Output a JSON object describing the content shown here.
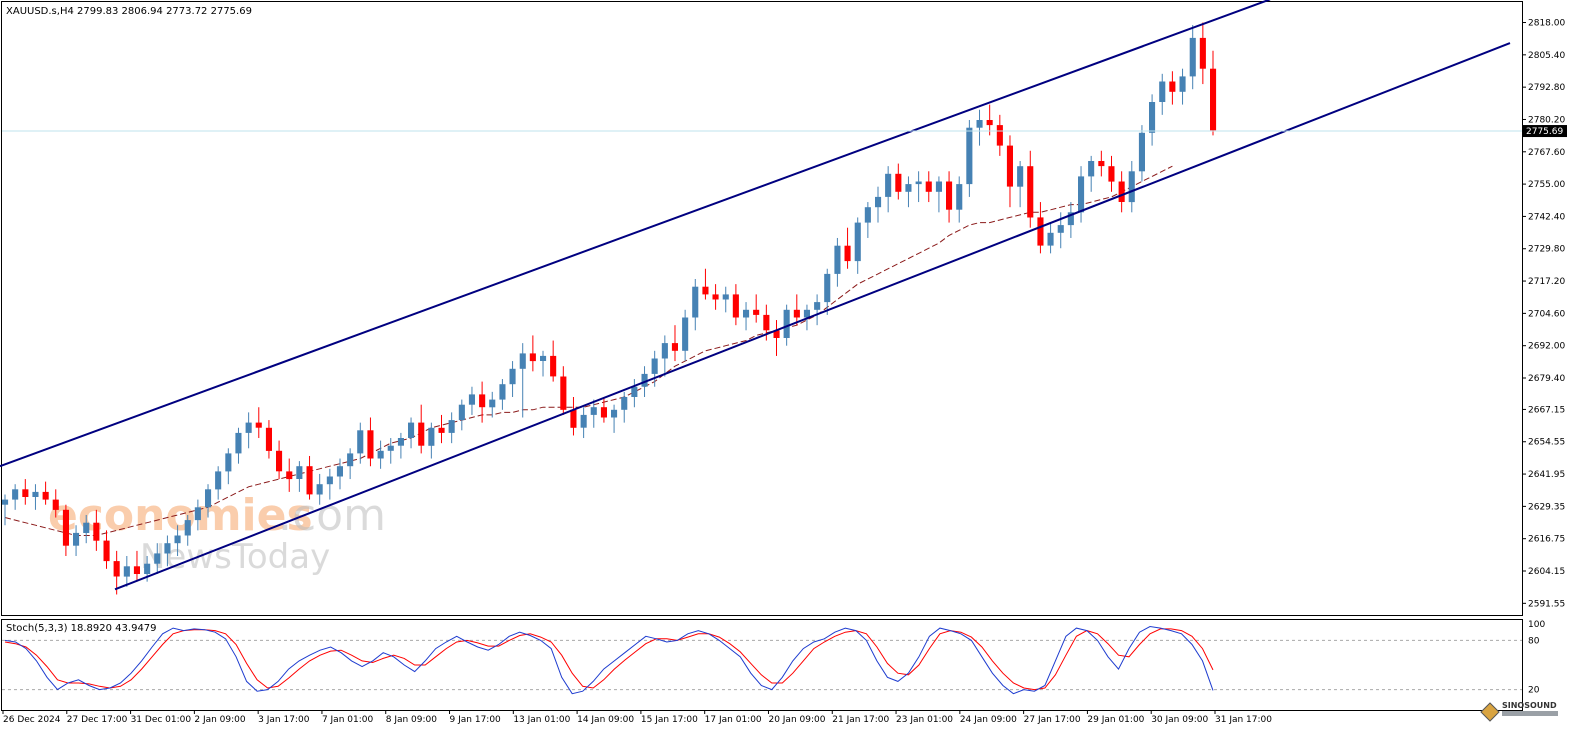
{
  "chart_data": {
    "type": "candlestick",
    "symbol_header": "XAUUSD.s,H4  2799.83 2806.94 2773.72 2775.69",
    "current_price_label": "2775.69",
    "current_price": 2775.69,
    "ylim": [
      2587.0,
      2826.0
    ],
    "y_ticks": [
      "2818.00",
      "2805.40",
      "2792.80",
      "2780.20",
      "2767.60",
      "2755.00",
      "2742.40",
      "2729.80",
      "2717.20",
      "2704.60",
      "2692.00",
      "2679.40",
      "2667.15",
      "2654.55",
      "2641.95",
      "2629.35",
      "2616.75",
      "2604.15",
      "2591.55"
    ],
    "x_ticks": [
      "26 Dec 2024",
      "27 Dec 17:00",
      "31 Dec 01:00",
      "2 Jan 09:00",
      "3 Jan 17:00",
      "7 Jan 01:00",
      "8 Jan 09:00",
      "9 Jan 17:00",
      "13 Jan 01:00",
      "14 Jan 09:00",
      "15 Jan 17:00",
      "17 Jan 01:00",
      "20 Jan 09:00",
      "21 Jan 17:00",
      "23 Jan 01:00",
      "24 Jan 09:00",
      "27 Jan 17:00",
      "29 Jan 01:00",
      "30 Jan 09:00",
      "31 Jan 17:00"
    ],
    "candles_ohlc": [
      [
        2630,
        2634,
        2622,
        2632
      ],
      [
        2632,
        2638,
        2628,
        2636
      ],
      [
        2636,
        2640,
        2630,
        2633
      ],
      [
        2633,
        2638,
        2628,
        2635
      ],
      [
        2635,
        2639,
        2630,
        2632
      ],
      [
        2632,
        2636,
        2625,
        2628
      ],
      [
        2628,
        2630,
        2610,
        2614
      ],
      [
        2614,
        2622,
        2610,
        2619
      ],
      [
        2619,
        2626,
        2615,
        2623
      ],
      [
        2623,
        2628,
        2612,
        2616
      ],
      [
        2616,
        2620,
        2605,
        2608
      ],
      [
        2608,
        2612,
        2595,
        2602
      ],
      [
        2602,
        2610,
        2598,
        2606
      ],
      [
        2606,
        2612,
        2600,
        2603
      ],
      [
        2603,
        2610,
        2600,
        2607
      ],
      [
        2607,
        2615,
        2603,
        2611
      ],
      [
        2611,
        2618,
        2606,
        2615
      ],
      [
        2615,
        2622,
        2610,
        2618
      ],
      [
        2618,
        2626,
        2614,
        2624
      ],
      [
        2624,
        2632,
        2620,
        2629
      ],
      [
        2629,
        2638,
        2625,
        2636
      ],
      [
        2636,
        2645,
        2632,
        2643
      ],
      [
        2643,
        2652,
        2638,
        2650
      ],
      [
        2650,
        2660,
        2646,
        2658
      ],
      [
        2658,
        2666,
        2652,
        2662
      ],
      [
        2662,
        2668,
        2656,
        2660
      ],
      [
        2660,
        2663,
        2648,
        2651
      ],
      [
        2651,
        2655,
        2640,
        2643
      ],
      [
        2643,
        2648,
        2635,
        2640
      ],
      [
        2640,
        2647,
        2635,
        2645
      ],
      [
        2645,
        2649,
        2632,
        2634
      ],
      [
        2634,
        2642,
        2630,
        2638
      ],
      [
        2638,
        2644,
        2632,
        2641
      ],
      [
        2641,
        2648,
        2636,
        2645
      ],
      [
        2645,
        2652,
        2640,
        2650
      ],
      [
        2650,
        2662,
        2646,
        2659
      ],
      [
        2659,
        2664,
        2645,
        2648
      ],
      [
        2648,
        2655,
        2644,
        2651
      ],
      [
        2651,
        2656,
        2646,
        2653
      ],
      [
        2653,
        2658,
        2648,
        2656
      ],
      [
        2656,
        2664,
        2652,
        2662
      ],
      [
        2662,
        2669,
        2650,
        2653
      ],
      [
        2653,
        2662,
        2648,
        2660
      ],
      [
        2660,
        2665,
        2654,
        2658
      ],
      [
        2658,
        2666,
        2654,
        2663
      ],
      [
        2663,
        2671,
        2659,
        2669
      ],
      [
        2669,
        2676,
        2665,
        2673
      ],
      [
        2673,
        2678,
        2662,
        2668
      ],
      [
        2668,
        2674,
        2664,
        2671
      ],
      [
        2671,
        2679,
        2667,
        2677
      ],
      [
        2677,
        2686,
        2672,
        2683
      ],
      [
        2683,
        2693,
        2664,
        2689
      ],
      [
        2689,
        2696,
        2682,
        2686
      ],
      [
        2686,
        2690,
        2680,
        2688
      ],
      [
        2688,
        2694,
        2678,
        2680
      ],
      [
        2680,
        2684,
        2665,
        2667
      ],
      [
        2667,
        2672,
        2657,
        2660
      ],
      [
        2660,
        2668,
        2656,
        2665
      ],
      [
        2665,
        2671,
        2660,
        2668
      ],
      [
        2668,
        2672,
        2662,
        2664
      ],
      [
        2664,
        2669,
        2658,
        2667
      ],
      [
        2667,
        2674,
        2662,
        2672
      ],
      [
        2672,
        2679,
        2668,
        2676
      ],
      [
        2676,
        2684,
        2672,
        2681
      ],
      [
        2681,
        2690,
        2676,
        2687
      ],
      [
        2687,
        2696,
        2680,
        2693
      ],
      [
        2693,
        2700,
        2686,
        2690
      ],
      [
        2690,
        2706,
        2686,
        2703
      ],
      [
        2703,
        2718,
        2698,
        2715
      ],
      [
        2715,
        2722,
        2710,
        2712
      ],
      [
        2712,
        2716,
        2706,
        2710
      ],
      [
        2710,
        2715,
        2705,
        2712
      ],
      [
        2712,
        2716,
        2700,
        2703
      ],
      [
        2703,
        2709,
        2698,
        2706
      ],
      [
        2706,
        2712,
        2701,
        2704
      ],
      [
        2704,
        2708,
        2694,
        2698
      ],
      [
        2698,
        2702,
        2688,
        2695
      ],
      [
        2695,
        2708,
        2692,
        2706
      ],
      [
        2706,
        2712,
        2700,
        2703
      ],
      [
        2703,
        2708,
        2698,
        2706
      ],
      [
        2706,
        2712,
        2700,
        2709
      ],
      [
        2709,
        2722,
        2704,
        2720
      ],
      [
        2720,
        2734,
        2715,
        2731
      ],
      [
        2731,
        2738,
        2722,
        2725
      ],
      [
        2725,
        2742,
        2720,
        2740
      ],
      [
        2740,
        2748,
        2734,
        2746
      ],
      [
        2746,
        2754,
        2740,
        2750
      ],
      [
        2750,
        2762,
        2744,
        2759
      ],
      [
        2759,
        2763,
        2749,
        2752
      ],
      [
        2752,
        2758,
        2746,
        2755
      ],
      [
        2755,
        2760,
        2748,
        2756
      ],
      [
        2756,
        2760,
        2748,
        2752
      ],
      [
        2752,
        2758,
        2744,
        2756
      ],
      [
        2756,
        2760,
        2740,
        2745
      ],
      [
        2745,
        2758,
        2740,
        2755
      ],
      [
        2755,
        2780,
        2750,
        2777
      ],
      [
        2777,
        2784,
        2770,
        2780
      ],
      [
        2780,
        2786,
        2774,
        2778
      ],
      [
        2778,
        2782,
        2766,
        2770
      ],
      [
        2770,
        2774,
        2746,
        2754
      ],
      [
        2754,
        2764,
        2746,
        2762
      ],
      [
        2762,
        2768,
        2738,
        2742
      ],
      [
        2742,
        2748,
        2728,
        2731
      ],
      [
        2731,
        2740,
        2728,
        2736
      ],
      [
        2736,
        2744,
        2730,
        2739
      ],
      [
        2739,
        2748,
        2734,
        2744
      ],
      [
        2744,
        2762,
        2740,
        2758
      ],
      [
        2758,
        2766,
        2752,
        2764
      ],
      [
        2764,
        2768,
        2758,
        2762
      ],
      [
        2762,
        2766,
        2752,
        2756
      ],
      [
        2756,
        2760,
        2744,
        2748
      ],
      [
        2748,
        2764,
        2744,
        2760
      ],
      [
        2760,
        2778,
        2756,
        2775
      ],
      [
        2775,
        2790,
        2770,
        2787
      ],
      [
        2787,
        2798,
        2782,
        2795
      ],
      [
        2795,
        2799,
        2786,
        2791
      ],
      [
        2791,
        2800,
        2786,
        2797
      ],
      [
        2797,
        2817,
        2792,
        2812
      ],
      [
        2812,
        2818,
        2794,
        2800
      ],
      [
        2800,
        2807,
        2774,
        2776
      ]
    ],
    "ma_dashed": [
      2625,
      2624,
      2623,
      2622,
      2621,
      2620,
      2619,
      2618,
      2618,
      2618,
      2619,
      2620,
      2621,
      2622,
      2623,
      2624,
      2625,
      2626,
      2627,
      2628,
      2629,
      2631,
      2633,
      2635,
      2637,
      2638,
      2639,
      2640,
      2641,
      2642,
      2643,
      2644,
      2645,
      2646,
      2647,
      2648,
      2650,
      2652,
      2654,
      2655,
      2656,
      2658,
      2660,
      2661,
      2662,
      2663,
      2664,
      2665,
      2665,
      2666,
      2666,
      2667,
      2667,
      2668,
      2668,
      2668,
      2668,
      2668,
      2669,
      2670,
      2671,
      2672,
      2674,
      2676,
      2678,
      2681,
      2684,
      2686,
      2688,
      2690,
      2691,
      2692,
      2693,
      2694,
      2696,
      2697,
      2698,
      2699,
      2700,
      2702,
      2704,
      2707,
      2710,
      2713,
      2716,
      2718,
      2720,
      2722,
      2724,
      2726,
      2728,
      2730,
      2732,
      2735,
      2737,
      2739,
      2740,
      2740,
      2741,
      2742,
      2743,
      2744,
      2744,
      2745,
      2746,
      2747,
      2747,
      2748,
      2749,
      2750,
      2752,
      2754,
      2756,
      2758,
      2760,
      2762
    ],
    "channel_upper": [
      [
        0,
        2645
      ],
      [
        1270,
        2827
      ]
    ],
    "channel_lower": [
      [
        115,
        2597
      ],
      [
        1510,
        2810
      ]
    ],
    "stoch_label": "Stoch(5,3,3) 18.8920 43.9479",
    "stoch_levels": [
      "100",
      "80",
      "20"
    ],
    "stoch_main": [
      80,
      78,
      70,
      55,
      35,
      20,
      28,
      32,
      25,
      20,
      22,
      28,
      40,
      55,
      72,
      88,
      95,
      92,
      94,
      93,
      90,
      82,
      60,
      30,
      18,
      20,
      30,
      45,
      55,
      62,
      68,
      72,
      65,
      55,
      48,
      55,
      65,
      60,
      50,
      42,
      55,
      70,
      78,
      85,
      78,
      72,
      68,
      75,
      85,
      90,
      86,
      80,
      70,
      35,
      15,
      18,
      30,
      45,
      55,
      65,
      75,
      85,
      82,
      78,
      80,
      88,
      92,
      88,
      80,
      70,
      60,
      40,
      25,
      20,
      35,
      55,
      70,
      78,
      82,
      90,
      95,
      92,
      80,
      55,
      35,
      30,
      40,
      60,
      85,
      95,
      92,
      88,
      80,
      60,
      40,
      25,
      15,
      20,
      18,
      25,
      55,
      85,
      95,
      92,
      80,
      60,
      45,
      70,
      90,
      97,
      95,
      92,
      88,
      75,
      55,
      19
    ],
    "stoch_signal": [
      78,
      76,
      72,
      62,
      48,
      32,
      28,
      28,
      27,
      24,
      22,
      24,
      32,
      45,
      60,
      75,
      88,
      92,
      93,
      93,
      92,
      88,
      75,
      52,
      32,
      22,
      24,
      34,
      45,
      55,
      62,
      67,
      68,
      62,
      55,
      53,
      58,
      62,
      58,
      50,
      50,
      60,
      70,
      78,
      80,
      77,
      73,
      73,
      80,
      86,
      88,
      84,
      78,
      62,
      40,
      24,
      22,
      32,
      45,
      56,
      66,
      76,
      82,
      82,
      80,
      84,
      88,
      88,
      84,
      76,
      66,
      52,
      38,
      28,
      28,
      40,
      55,
      70,
      78,
      85,
      90,
      92,
      88,
      72,
      52,
      40,
      38,
      50,
      70,
      88,
      92,
      90,
      84,
      72,
      55,
      40,
      28,
      22,
      20,
      22,
      38,
      62,
      85,
      92,
      88,
      76,
      62,
      60,
      75,
      88,
      94,
      94,
      92,
      85,
      70,
      44
    ]
  },
  "watermark": {
    "brand_line1_part1": "economies",
    "brand_line1_part2": ".com",
    "brand_line2": "NewsToday",
    "corner_logo_text": "SINOSOUND"
  }
}
